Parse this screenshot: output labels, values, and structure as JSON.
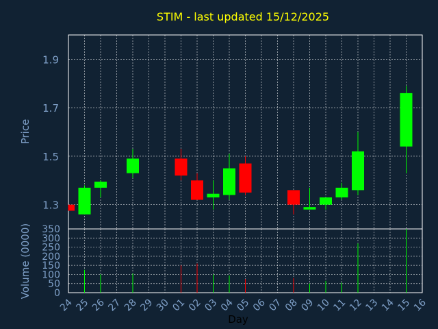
{
  "chart_data": {
    "type": "candlestick",
    "title": "STIM - last updated 15/12/2025",
    "xlabel": "Day",
    "categories": [
      "24",
      "25",
      "26",
      "27",
      "28",
      "29",
      "30",
      "01",
      "02",
      "03",
      "04",
      "05",
      "06",
      "07",
      "08",
      "09",
      "10",
      "11",
      "12",
      "13",
      "14",
      "15",
      "16"
    ],
    "price": {
      "ylabel": "Price",
      "ylim": [
        1.2,
        2.0
      ],
      "ticks": [
        "1.3",
        "1.5",
        "1.7",
        "1.9"
      ],
      "candles": [
        {
          "day": "24",
          "open": 1.3,
          "close": 1.275,
          "high": 1.3,
          "low": 1.275
        },
        {
          "day": "25",
          "open": 1.26,
          "close": 1.37,
          "high": 1.38,
          "low": 1.26
        },
        {
          "day": "26",
          "open": 1.37,
          "close": 1.395,
          "high": 1.4,
          "low": 1.33
        },
        {
          "day": "28",
          "open": 1.43,
          "close": 1.49,
          "high": 1.53,
          "low": 1.41
        },
        {
          "day": "01",
          "open": 1.49,
          "close": 1.42,
          "high": 1.53,
          "low": 1.4
        },
        {
          "day": "02",
          "open": 1.4,
          "close": 1.32,
          "high": 1.43,
          "low": 1.32
        },
        {
          "day": "03",
          "open": 1.33,
          "close": 1.345,
          "high": 1.4,
          "low": 1.28
        },
        {
          "day": "04",
          "open": 1.34,
          "close": 1.45,
          "high": 1.51,
          "low": 1.32
        },
        {
          "day": "05",
          "open": 1.47,
          "close": 1.35,
          "high": 1.5,
          "low": 1.34
        },
        {
          "day": "08",
          "open": 1.36,
          "close": 1.3,
          "high": 1.36,
          "low": 1.26
        },
        {
          "day": "09",
          "open": 1.28,
          "close": 1.29,
          "high": 1.37,
          "low": 1.28
        },
        {
          "day": "10",
          "open": 1.3,
          "close": 1.33,
          "high": 1.33,
          "low": 1.28
        },
        {
          "day": "11",
          "open": 1.33,
          "close": 1.37,
          "high": 1.39,
          "low": 1.32
        },
        {
          "day": "12",
          "open": 1.36,
          "close": 1.52,
          "high": 1.6,
          "low": 1.34
        },
        {
          "day": "15",
          "open": 1.54,
          "close": 1.76,
          "high": 1.79,
          "low": 1.43
        }
      ]
    },
    "volume": {
      "ylabel": "Volume (0000)",
      "ylim": [
        0,
        350
      ],
      "ticks": [
        "0",
        "50",
        "100",
        "150",
        "200",
        "250",
        "300",
        "350"
      ],
      "bars": [
        {
          "day": "24",
          "value": 0,
          "up": false
        },
        {
          "day": "25",
          "value": 125,
          "up": true
        },
        {
          "day": "26",
          "value": 100,
          "up": true
        },
        {
          "day": "28",
          "value": 105,
          "up": true
        },
        {
          "day": "01",
          "value": 150,
          "up": false
        },
        {
          "day": "02",
          "value": 160,
          "up": false
        },
        {
          "day": "03",
          "value": 100,
          "up": true
        },
        {
          "day": "04",
          "value": 95,
          "up": true
        },
        {
          "day": "05",
          "value": 75,
          "up": false
        },
        {
          "day": "08",
          "value": 80,
          "up": false
        },
        {
          "day": "09",
          "value": 50,
          "up": true
        },
        {
          "day": "10",
          "value": 65,
          "up": true
        },
        {
          "day": "11",
          "value": 55,
          "up": true
        },
        {
          "day": "12",
          "value": 270,
          "up": true
        },
        {
          "day": "15",
          "value": 350,
          "up": true
        }
      ]
    },
    "colors": {
      "background": "#112233",
      "title": "#ffff00",
      "text": "#7fa0c8",
      "axis_title": "#000000",
      "grid": "#ffffff",
      "up": "#00ff00",
      "down": "#ff0000"
    }
  }
}
